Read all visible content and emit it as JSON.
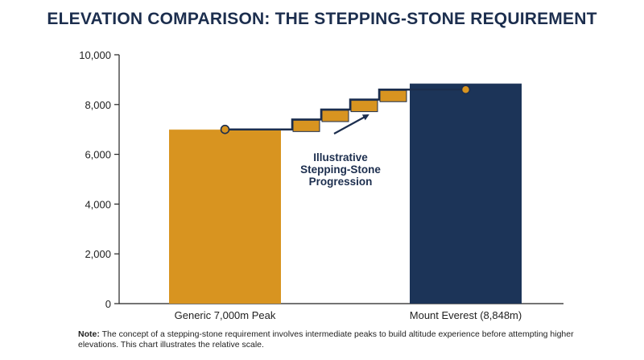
{
  "chart_data": {
    "type": "bar",
    "title": "ELEVATION COMPARISON: THE STEPPING-STONE REQUIREMENT",
    "categories": [
      "Generic 7,000m Peak",
      "Mount Everest (8,848m)"
    ],
    "values": [
      7000,
      8848
    ],
    "ylim": [
      0,
      10000
    ],
    "yticks": [
      0,
      2000,
      4000,
      6000,
      8000,
      10000
    ],
    "ytick_labels": [
      "0",
      "2,000",
      "4,000",
      "6,000",
      "8,000",
      "10,000"
    ],
    "grid": false,
    "colors": [
      "#d89420",
      "#1c3458"
    ],
    "annotation": {
      "lines": [
        "Illustrative",
        "Stepping-Stone",
        "Progression"
      ],
      "steps": [
        7400,
        7800,
        8200,
        8600
      ]
    }
  },
  "note": {
    "label": "Note:",
    "text": "The concept of a stepping-stone requirement involves intermediate peaks to build altitude experience before attempting higher elevations. This chart illustrates the relative scale."
  }
}
